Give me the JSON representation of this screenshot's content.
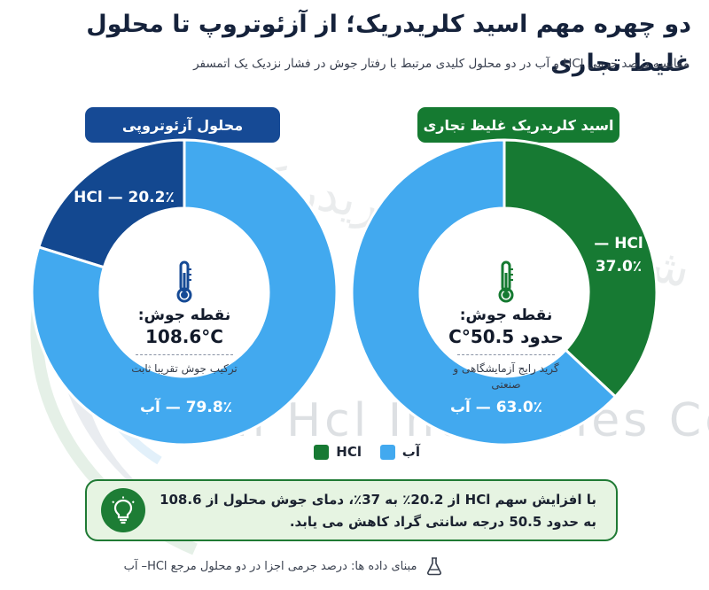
{
  "title": "دو چهره مهم اسید کلریدریک؛ از آزئوتروپ تا محلول غلیظ تجاری",
  "subtitle": "مقایسه درصد جرمی HCl و آب در دو محلول کلیدی مرتبط با رفتار جوش در فشار نزدیک یک اتمسفر",
  "watermark_text": "Iran Hcl Industries Co",
  "watermark_fa": "شرکت صنایع کلریدریک ایران",
  "colors": {
    "hcl_azeotrope": "#134890",
    "hcl_concentrated": "#177a33",
    "water": "#42a9ef",
    "azeotrope_pill": "#164a95",
    "concentrated_pill": "#157a31",
    "callout_border": "#1f7a34",
    "callout_bg": "#e6f4e2"
  },
  "chart_data": [
    {
      "type": "pie",
      "title": "محلول آزئوتروپی",
      "categories": [
        "HCl",
        "آب"
      ],
      "values": [
        20.2,
        79.8
      ],
      "slice_labels": [
        "HCl — 20.2٪",
        "79.8٪ — آب"
      ],
      "center": {
        "label": "نقطه جوش:",
        "value": "108.6°C",
        "note": "ترکیب جوش تقریبا ثابت"
      }
    },
    {
      "type": "pie",
      "title": "اسید کلریدریک غلیظ تجاری",
      "categories": [
        "HCl",
        "آب"
      ],
      "values": [
        37.0,
        63.0
      ],
      "slice_labels": [
        "HCl — 37.0٪",
        "63.0٪ — آب"
      ],
      "center": {
        "label": "نقطه جوش:",
        "value": "حدود 50.5°C",
        "note": "گرید رایج آزمایشگاهی و صنعتی"
      }
    }
  ],
  "legend": {
    "items": [
      {
        "label": "HCl",
        "color": "#177a33"
      },
      {
        "label": "آب",
        "color": "#42a9ef"
      }
    ]
  },
  "callout": {
    "text": "با افزایش سهم HCl از 20.2٪ به 37٪، دمای جوش محلول از 108.6 به حدود 50.5 درجه سانتی گراد کاهش می یابد.",
    "icon": "lightbulb-icon"
  },
  "footer": {
    "text": "مبنای داده ها: درصد جرمی اجزا در دو محلول مرجع HCl– آب",
    "icon": "flask-icon"
  }
}
